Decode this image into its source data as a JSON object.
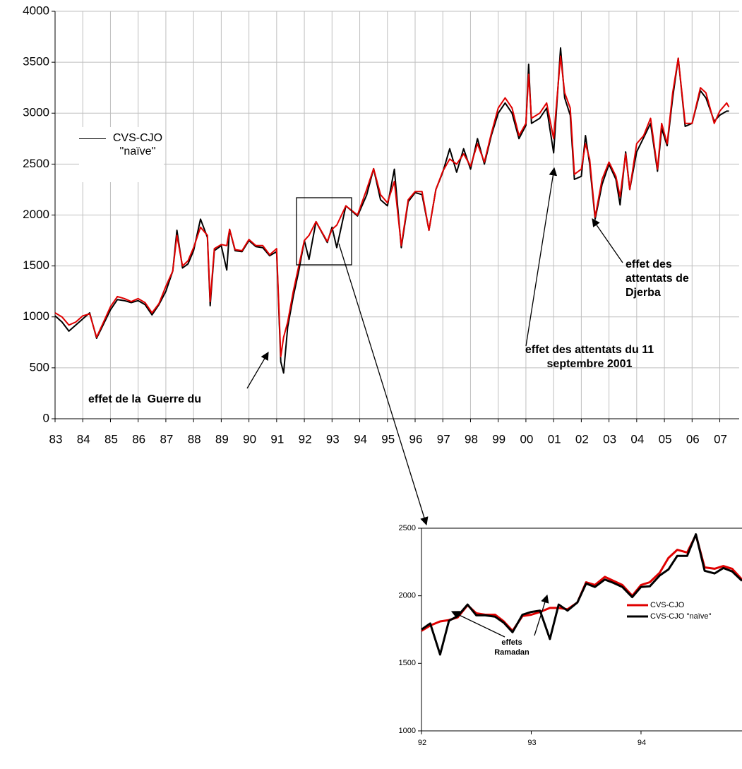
{
  "chart_data": [
    {
      "type": "line",
      "x": [
        1983.0,
        1983.25,
        1983.5,
        1983.75,
        1984.0,
        1984.25,
        1984.5,
        1984.75,
        1985.0,
        1985.25,
        1985.5,
        1985.75,
        1986.0,
        1986.25,
        1986.5,
        1986.75,
        1987.0,
        1987.25,
        1987.4,
        1987.6,
        1987.8,
        1988.0,
        1988.25,
        1988.5,
        1988.6,
        1988.75,
        1989.0,
        1989.2,
        1989.3,
        1989.5,
        1989.75,
        1990.0,
        1990.25,
        1990.5,
        1990.75,
        1991.0,
        1991.15,
        1991.25,
        1991.4,
        1991.6,
        1991.8,
        1992.0,
        1992.17,
        1992.42,
        1992.83,
        1993.0,
        1993.17,
        1993.5,
        1993.92,
        1994.25,
        1994.5,
        1994.75,
        1995.0,
        1995.25,
        1995.5,
        1995.75,
        1996.0,
        1996.25,
        1996.5,
        1996.75,
        1997.0,
        1997.25,
        1997.5,
        1997.75,
        1998.0,
        1998.25,
        1998.5,
        1998.75,
        1999.0,
        1999.25,
        1999.5,
        1999.75,
        2000.0,
        2000.1,
        2000.2,
        2000.5,
        2000.75,
        2001.0,
        2001.25,
        2001.4,
        2001.6,
        2001.75,
        2002.0,
        2002.15,
        2002.3,
        2002.5,
        2002.75,
        2003.0,
        2003.25,
        2003.4,
        2003.6,
        2003.75,
        2004.0,
        2004.25,
        2004.5,
        2004.75,
        2004.9,
        2005.1,
        2005.3,
        2005.5,
        2005.75,
        2006.0,
        2006.3,
        2006.5,
        2006.8,
        2007.0,
        2007.25,
        2007.33
      ],
      "series": [
        {
          "name": "CVS-CJO ''naïve''",
          "color": "#000000",
          "values": [
            1010,
            950,
            860,
            920,
            980,
            1040,
            790,
            930,
            1070,
            1170,
            1160,
            1140,
            1160,
            1120,
            1020,
            1120,
            1250,
            1450,
            1850,
            1480,
            1520,
            1650,
            1960,
            1780,
            1110,
            1650,
            1700,
            1460,
            1860,
            1650,
            1640,
            1750,
            1690,
            1680,
            1600,
            1640,
            560,
            450,
            900,
            1200,
            1450,
            1750,
            1565,
            1935,
            1730,
            1880,
            1680,
            2090,
            1990,
            2195,
            2455,
            2150,
            2090,
            2450,
            1680,
            2130,
            2220,
            2200,
            1850,
            2250,
            2420,
            2650,
            2420,
            2650,
            2450,
            2750,
            2500,
            2780,
            3000,
            3100,
            3000,
            2750,
            2880,
            3480,
            2900,
            2950,
            3050,
            2610,
            3640,
            3150,
            2980,
            2350,
            2380,
            2780,
            2500,
            1960,
            2300,
            2500,
            2350,
            2100,
            2620,
            2250,
            2620,
            2760,
            2900,
            2430,
            2850,
            2680,
            3150,
            3540,
            2870,
            2900,
            3220,
            3150,
            2920,
            2980,
            3020,
            3020
          ]
        },
        {
          "color": "#e00000",
          "values": [
            1040,
            1000,
            920,
            950,
            1010,
            1030,
            800,
            950,
            1100,
            1200,
            1180,
            1150,
            1180,
            1140,
            1040,
            1130,
            1300,
            1450,
            1800,
            1500,
            1550,
            1680,
            1880,
            1800,
            1150,
            1670,
            1710,
            1700,
            1860,
            1660,
            1650,
            1760,
            1700,
            1700,
            1610,
            1670,
            610,
            800,
            950,
            1250,
            1500,
            1750,
            1800,
            1935,
            1740,
            1860,
            1900,
            2090,
            2000,
            2250,
            2455,
            2200,
            2120,
            2330,
            1700,
            2150,
            2230,
            2230,
            1850,
            2250,
            2430,
            2550,
            2500,
            2600,
            2480,
            2700,
            2520,
            2800,
            3050,
            3150,
            3050,
            2780,
            2900,
            3380,
            2950,
            3000,
            3100,
            2750,
            3560,
            3200,
            3050,
            2400,
            2450,
            2700,
            2550,
            1980,
            2350,
            2520,
            2380,
            2180,
            2600,
            2250,
            2700,
            2780,
            2950,
            2450,
            2900,
            2700,
            3200,
            3540,
            2900,
            2900,
            3250,
            3200,
            2900,
            3020,
            3100,
            3060
          ]
        }
      ],
      "xlim": [
        1983,
        2007.7
      ],
      "xticks": [
        {
          "value": 1983,
          "label": "83"
        },
        {
          "value": 1984,
          "label": "84"
        },
        {
          "value": 1985,
          "label": "85"
        },
        {
          "value": 1986,
          "label": "86"
        },
        {
          "value": 1987,
          "label": "87"
        },
        {
          "value": 1988,
          "label": "88"
        },
        {
          "value": 1989,
          "label": "89"
        },
        {
          "value": 1990,
          "label": "90"
        },
        {
          "value": 1991,
          "label": "91"
        },
        {
          "value": 1992,
          "label": "92"
        },
        {
          "value": 1993,
          "label": "93"
        },
        {
          "value": 1994,
          "label": "94"
        },
        {
          "value": 1995,
          "label": "95"
        },
        {
          "value": 1996,
          "label": "96"
        },
        {
          "value": 1997,
          "label": "97"
        },
        {
          "value": 1998,
          "label": "98"
        },
        {
          "value": 1999,
          "label": "99"
        },
        {
          "value": 2000,
          "label": "00"
        },
        {
          "value": 2001,
          "label": "01"
        },
        {
          "value": 2002,
          "label": "02"
        },
        {
          "value": 2003,
          "label": "03"
        },
        {
          "value": 2004,
          "label": "04"
        },
        {
          "value": 2005,
          "label": "05"
        },
        {
          "value": 2006,
          "label": "06"
        },
        {
          "value": 2007,
          "label": "07"
        }
      ],
      "ylim": [
        0,
        4000
      ],
      "yticks": [
        0,
        500,
        1000,
        1500,
        2000,
        2500,
        3000,
        3500,
        4000
      ],
      "grid": true,
      "legend": "left",
      "annotations": [
        "effet de la  Guerre du",
        "effet des attentats du 11 septembre 2001",
        "effet des attentats de Djerba"
      ]
    },
    {
      "type": "line",
      "x": [
        1992,
        1992.08,
        1992.17,
        1992.25,
        1992.33,
        1992.42,
        1992.5,
        1992.58,
        1992.67,
        1992.75,
        1992.83,
        1992.92,
        1993,
        1993.08,
        1993.17,
        1993.25,
        1993.33,
        1993.42,
        1993.5,
        1993.58,
        1993.67,
        1993.75,
        1993.83,
        1993.92,
        1994,
        1994.08,
        1994.17,
        1994.25,
        1994.33,
        1994.42,
        1994.5,
        1994.58,
        1994.67,
        1994.75,
        1994.83,
        1994.92
      ],
      "series": [
        {
          "name": "CVS-CJO",
          "color": "#e00000",
          "values": [
            1740,
            1780,
            1810,
            1820,
            1840,
            1930,
            1870,
            1860,
            1860,
            1810,
            1740,
            1850,
            1860,
            1880,
            1910,
            1910,
            1900,
            1950,
            2100,
            2080,
            2140,
            2110,
            2080,
            2000,
            2080,
            2100,
            2170,
            2280,
            2340,
            2320,
            2450,
            2210,
            2200,
            2220,
            2200,
            2120
          ]
        },
        {
          "name": "CVS-CJO ''naïve''",
          "color": "#000000",
          "values": [
            1750,
            1795,
            1565,
            1815,
            1850,
            1935,
            1855,
            1855,
            1845,
            1800,
            1730,
            1860,
            1880,
            1890,
            1680,
            1935,
            1890,
            1950,
            2090,
            2065,
            2120,
            2095,
            2065,
            1990,
            2065,
            2070,
            2150,
            2195,
            2295,
            2295,
            2455,
            2185,
            2165,
            2205,
            2180,
            2110
          ]
        }
      ],
      "xlim": [
        1992,
        1994.92
      ],
      "xticks": [
        {
          "value": 1992,
          "label": "92"
        },
        {
          "value": 1993,
          "label": "93"
        },
        {
          "value": 1994,
          "label": "94"
        }
      ],
      "ylim": [
        1000,
        2500
      ],
      "yticks": [
        1000,
        1500,
        2000,
        2500
      ],
      "grid": false,
      "legend": "right",
      "annotations": [
        "effets Ramadan"
      ]
    }
  ]
}
